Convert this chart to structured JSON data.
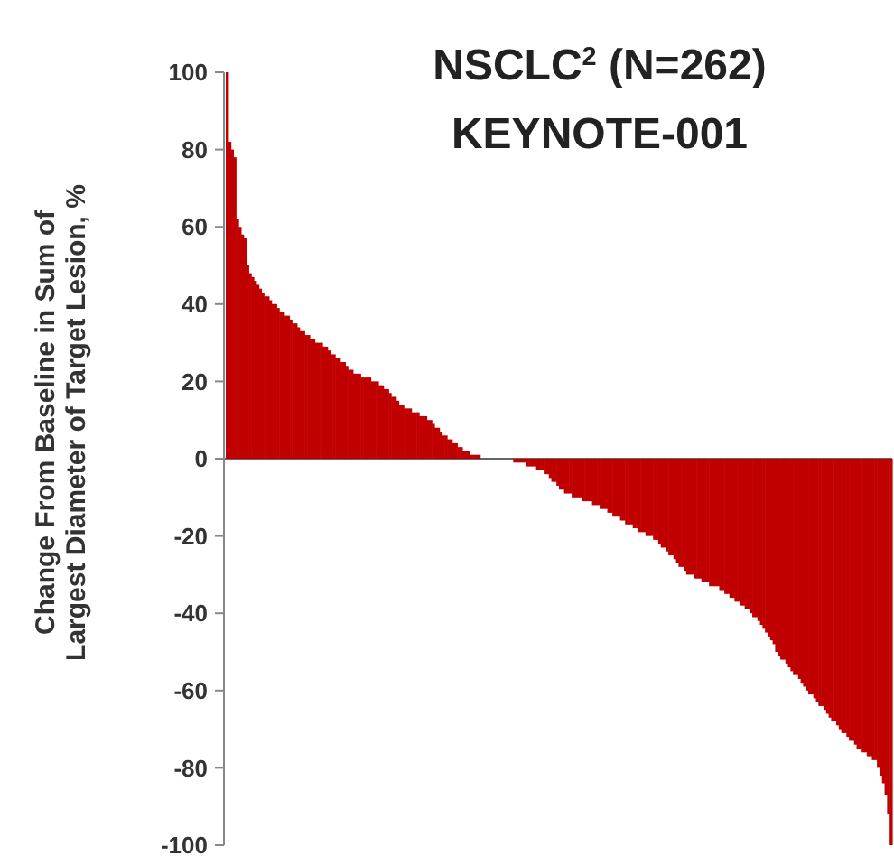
{
  "chart_data": {
    "type": "bar",
    "title": "NSCLC$^{2}$ (N=262)",
    "subtitle": "KEYNOTE-001",
    "ylabel": "Change From Baseline in Sum of Largest Diameter of Target Lesion, %",
    "color": "#c00000",
    "ylim": [
      -100,
      100
    ],
    "yticks": [
      -100,
      -80,
      -60,
      -40,
      -20,
      0,
      20,
      40,
      60,
      80,
      100
    ],
    "categories": [
      null,
      null,
      null,
      null,
      null,
      null,
      null,
      null,
      null,
      null,
      null,
      null,
      null,
      null,
      null,
      null,
      null,
      null,
      null,
      null,
      null,
      null,
      null,
      null,
      null,
      null,
      null,
      null,
      null,
      null,
      null,
      null,
      null,
      null,
      null,
      null,
      null,
      null,
      null,
      null,
      null,
      null,
      null,
      null,
      null,
      null,
      null,
      null,
      null,
      null,
      null,
      null,
      null,
      null,
      null,
      null,
      null,
      null,
      null,
      null,
      null,
      null,
      null,
      null,
      null,
      null,
      null,
      null,
      null,
      null,
      null,
      null,
      null,
      null,
      null,
      null,
      null,
      null,
      null,
      null,
      null,
      null,
      null,
      null,
      null,
      null,
      null,
      null,
      null,
      null,
      null,
      null,
      null,
      null,
      null,
      null,
      null,
      null,
      null,
      null,
      null,
      null,
      null,
      null,
      null,
      null,
      null,
      null,
      null,
      null,
      null,
      null,
      null,
      null,
      null,
      null,
      null,
      null,
      null,
      null,
      null,
      null,
      null,
      null,
      null,
      null,
      null,
      null,
      null,
      null,
      null,
      null,
      null,
      null,
      null,
      null,
      null,
      null,
      null,
      null,
      null,
      null,
      null,
      null,
      null,
      null,
      null,
      null,
      null,
      null,
      null,
      null,
      null,
      null,
      null,
      null,
      null,
      null,
      null,
      null,
      null,
      null,
      null,
      null,
      null,
      null,
      null,
      null,
      null,
      null,
      null,
      null,
      null,
      null,
      null,
      null,
      null,
      null,
      null,
      null,
      null,
      null,
      null,
      null,
      null,
      null,
      null,
      null,
      null,
      null,
      null,
      null,
      null,
      null,
      null,
      null,
      null,
      null,
      null,
      null,
      null,
      null,
      null,
      null,
      null,
      null,
      null,
      null,
      null,
      null,
      null,
      null,
      null,
      null,
      null,
      null,
      null,
      null,
      null,
      null,
      null,
      null,
      null,
      null,
      null,
      null,
      null,
      null,
      null,
      null,
      null,
      null,
      null,
      null,
      null,
      null,
      null,
      null,
      null,
      null,
      null,
      null,
      null,
      null,
      null,
      null,
      null,
      null,
      null,
      null,
      null,
      null,
      null,
      null,
      null,
      null,
      null,
      null,
      null,
      null,
      null,
      null
    ],
    "values": [
      100,
      82,
      80,
      78,
      62,
      60,
      58,
      57,
      50,
      48,
      47,
      46,
      45,
      44,
      43,
      42,
      42,
      41,
      40,
      40,
      39,
      38,
      38,
      37,
      37,
      36,
      35,
      35,
      34,
      33,
      33,
      32,
      32,
      31,
      31,
      30,
      30,
      30,
      29,
      29,
      28,
      27,
      27,
      26,
      26,
      25,
      25,
      24,
      23,
      23,
      22,
      22,
      22,
      21,
      21,
      21,
      21,
      20,
      20,
      20,
      19,
      19,
      18,
      18,
      17,
      16,
      16,
      15,
      14,
      14,
      13,
      13,
      13,
      12,
      12,
      12,
      11,
      11,
      11,
      10,
      10,
      9,
      8,
      8,
      7,
      6,
      6,
      5,
      5,
      4,
      4,
      3,
      3,
      2,
      2,
      2,
      1,
      1,
      1,
      1,
      0,
      0,
      0,
      0,
      0,
      0,
      0,
      0,
      0,
      0,
      0,
      0,
      0,
      -1,
      -1,
      -1,
      -1,
      -1,
      -2,
      -2,
      -2,
      -2,
      -3,
      -3,
      -3,
      -4,
      -4,
      -5,
      -6,
      -6,
      -7,
      -8,
      -8,
      -9,
      -9,
      -9,
      -10,
      -10,
      -10,
      -10,
      -11,
      -11,
      -11,
      -11,
      -12,
      -12,
      -12,
      -13,
      -13,
      -13,
      -14,
      -14,
      -15,
      -15,
      -15,
      -16,
      -16,
      -17,
      -17,
      -17,
      -18,
      -18,
      -19,
      -19,
      -19,
      -20,
      -20,
      -20,
      -21,
      -21,
      -22,
      -23,
      -23,
      -24,
      -25,
      -25,
      -26,
      -27,
      -28,
      -28,
      -29,
      -30,
      -30,
      -30,
      -31,
      -31,
      -31,
      -32,
      -32,
      -32,
      -33,
      -33,
      -33,
      -33,
      -34,
      -34,
      -35,
      -35,
      -36,
      -36,
      -37,
      -37,
      -38,
      -38,
      -39,
      -39,
      -40,
      -41,
      -41,
      -42,
      -43,
      -44,
      -45,
      -46,
      -47,
      -48,
      -50,
      -51,
      -52,
      -52,
      -53,
      -54,
      -55,
      -56,
      -56,
      -57,
      -58,
      -59,
      -60,
      -61,
      -61,
      -62,
      -63,
      -64,
      -64,
      -65,
      -66,
      -67,
      -68,
      -68,
      -69,
      -70,
      -71,
      -71,
      -72,
      -73,
      -73,
      -74,
      -75,
      -75,
      -76,
      -76,
      -77,
      -77,
      -78,
      -78,
      -80,
      -82,
      -84,
      -87,
      -92,
      -100
    ]
  }
}
